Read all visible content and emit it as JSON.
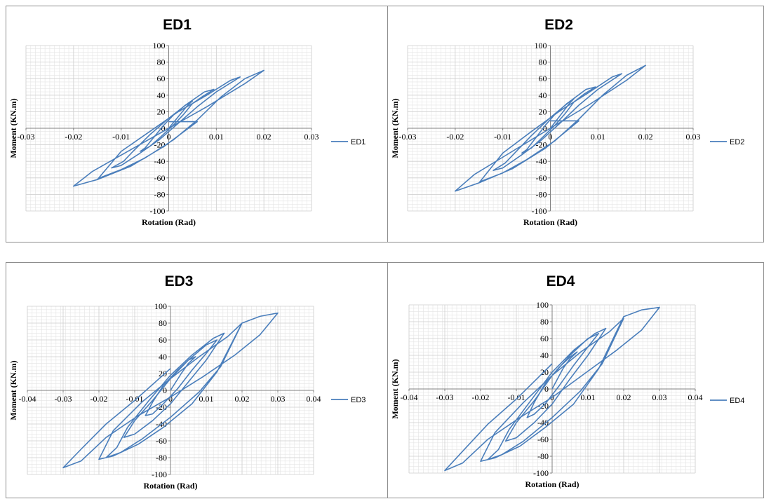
{
  "chart_data": [
    {
      "type": "line",
      "title": "ED1",
      "xlabel": "Rotation (Rad)",
      "ylabel": "Moment (KN.m)",
      "xlim": [
        -0.03,
        0.03
      ],
      "ylim": [
        -100,
        100
      ],
      "xticks": [
        -0.03,
        -0.02,
        -0.01,
        0,
        0.01,
        0.02,
        0.03
      ],
      "xtick_labels": [
        "-0.03",
        "-0.02",
        "-0.01",
        "0",
        "0.01",
        "0.02",
        "0.03"
      ],
      "yticks": [
        -100,
        -80,
        -60,
        -40,
        -20,
        0,
        20,
        40,
        60,
        80,
        100
      ],
      "ytick_labels": [
        "-100",
        "-80",
        "-60",
        "-40",
        "-20",
        "0",
        "20",
        "40",
        "60",
        "80",
        "100"
      ],
      "grid": true,
      "legend_position": "right",
      "series": [
        {
          "name": "ED1",
          "color": "#4a7ebb",
          "x": [
            0,
            0.002,
            0.004,
            0.005,
            0.0035,
            0.001,
            -0.001,
            -0.003,
            -0.005,
            -0.006,
            -0.004,
            -0.002,
            0.001,
            0.003,
            0.005,
            0.007,
            0.0095,
            0.0075,
            0.004,
            0.0,
            -0.004,
            -0.0075,
            -0.0095,
            -0.012,
            -0.01,
            -0.006,
            -0.002,
            0.002,
            0.006,
            0.01,
            0.015,
            0.013,
            0.008,
            0.002,
            -0.004,
            -0.01,
            -0.015,
            -0.0145,
            -0.01,
            -0.005,
            0.001,
            0.006,
            0.011,
            0.016,
            0.02,
            0.016,
            0.008,
            0.0,
            -0.008,
            -0.016,
            -0.02,
            -0.015,
            -0.008,
            -0.001,
            0.006,
            0.0
          ],
          "y": [
            0,
            14,
            28,
            33,
            28,
            16,
            4,
            -10,
            -24,
            -28,
            -22,
            -12,
            4,
            16,
            30,
            38,
            47,
            44,
            30,
            12,
            -8,
            -28,
            -40,
            -48,
            -45,
            -30,
            -14,
            6,
            26,
            44,
            62,
            58,
            40,
            20,
            -4,
            -28,
            -62,
            -60,
            -50,
            -36,
            -14,
            10,
            38,
            60,
            70,
            54,
            26,
            0,
            -26,
            -52,
            -70,
            -62,
            -46,
            -22,
            8,
            8
          ]
        }
      ]
    },
    {
      "type": "line",
      "title": "ED2",
      "xlabel": "Rotation (Rad)",
      "ylabel": "Moment (KN.m)",
      "xlim": [
        -0.03,
        0.03
      ],
      "ylim": [
        -100,
        100
      ],
      "xticks": [
        -0.03,
        -0.02,
        -0.01,
        0,
        0.01,
        0.02,
        0.03
      ],
      "xtick_labels": [
        "-0.03",
        "-0.02",
        "-0.01",
        "0",
        "0.01",
        "0.02",
        "0.03"
      ],
      "yticks": [
        -100,
        -80,
        -60,
        -40,
        -20,
        0,
        20,
        40,
        60,
        80,
        100
      ],
      "ytick_labels": [
        "-100",
        "-80",
        "-60",
        "-40",
        "-20",
        "0",
        "20",
        "40",
        "60",
        "80",
        "100"
      ],
      "grid": true,
      "legend_position": "right",
      "series": [
        {
          "name": "ED2",
          "color": "#4a7ebb",
          "x": [
            0,
            0.002,
            0.004,
            0.005,
            0.0035,
            0.001,
            -0.001,
            -0.003,
            -0.005,
            -0.006,
            -0.004,
            -0.002,
            0.001,
            0.003,
            0.005,
            0.007,
            0.0095,
            0.0075,
            0.004,
            0.0,
            -0.004,
            -0.0075,
            -0.0095,
            -0.012,
            -0.01,
            -0.006,
            -0.002,
            0.002,
            0.006,
            0.01,
            0.015,
            0.013,
            0.008,
            0.002,
            -0.004,
            -0.01,
            -0.015,
            -0.0145,
            -0.01,
            -0.005,
            0.001,
            0.006,
            0.011,
            0.016,
            0.02,
            0.016,
            0.008,
            0.0,
            -0.008,
            -0.016,
            -0.02,
            -0.015,
            -0.008,
            -0.001,
            0.006,
            0.0
          ],
          "y": [
            0,
            15,
            30,
            36,
            30,
            17,
            4,
            -11,
            -26,
            -30,
            -24,
            -13,
            4,
            17,
            32,
            41,
            50,
            47,
            32,
            13,
            -9,
            -30,
            -42,
            -51,
            -48,
            -32,
            -15,
            6,
            28,
            47,
            66,
            62,
            43,
            21,
            -4,
            -30,
            -66,
            -64,
            -54,
            -38,
            -15,
            11,
            40,
            64,
            76,
            58,
            28,
            0,
            -28,
            -56,
            -76,
            -66,
            -49,
            -24,
            9,
            9
          ]
        }
      ]
    },
    {
      "type": "line",
      "title": "ED3",
      "xlabel": "Rotation (Rad)",
      "ylabel": "Moment (KN.m)",
      "xlim": [
        -0.04,
        0.04
      ],
      "ylim": [
        -100,
        100
      ],
      "xticks": [
        -0.04,
        -0.03,
        -0.02,
        -0.01,
        0,
        0.01,
        0.02,
        0.03,
        0.04
      ],
      "xtick_labels": [
        "-0.04",
        "-0.03",
        "-0.02",
        "-0.01",
        "0",
        "0.01",
        "0.02",
        "0.03",
        "0.04"
      ],
      "yticks": [
        -100,
        -80,
        -60,
        -40,
        -20,
        0,
        20,
        40,
        60,
        80,
        100
      ],
      "ytick_labels": [
        "-100",
        "-80",
        "-60",
        "-40",
        "-20",
        "0",
        "20",
        "40",
        "60",
        "80",
        "100"
      ],
      "grid": true,
      "legend_position": "right",
      "series": [
        {
          "name": "ED3",
          "color": "#4a7ebb",
          "x": [
            0,
            0.003,
            0.005,
            0.007,
            0.005,
            0.002,
            -0.002,
            -0.005,
            -0.007,
            -0.005,
            -0.002,
            0.002,
            0.006,
            0.01,
            0.013,
            0.01,
            0.005,
            0.0,
            -0.005,
            -0.01,
            -0.013,
            -0.01,
            -0.005,
            0.0,
            0.005,
            0.01,
            0.015,
            0.012,
            0.006,
            0.0,
            -0.006,
            -0.012,
            -0.015,
            -0.018,
            -0.014,
            -0.008,
            0.0,
            0.008,
            0.014,
            0.02,
            0.016,
            0.008,
            0.0,
            -0.008,
            -0.016,
            -0.02,
            -0.016,
            -0.009,
            -0.002,
            0.006,
            0.013,
            0.02,
            0.025,
            0.03,
            0.025,
            0.018,
            0.009,
            0.0,
            -0.009,
            -0.018,
            -0.025,
            -0.03,
            -0.025,
            -0.018,
            -0.01,
            0.0
          ],
          "y": [
            0,
            20,
            32,
            40,
            36,
            24,
            6,
            -14,
            -30,
            -28,
            -16,
            2,
            24,
            44,
            60,
            54,
            36,
            14,
            -12,
            -36,
            -56,
            -52,
            -36,
            -16,
            10,
            36,
            68,
            62,
            42,
            18,
            -12,
            -44,
            -68,
            -80,
            -74,
            -58,
            -32,
            -2,
            28,
            80,
            64,
            40,
            14,
            -14,
            -48,
            -82,
            -78,
            -64,
            -44,
            -16,
            22,
            80,
            88,
            92,
            66,
            42,
            16,
            -8,
            -30,
            -56,
            -84,
            -92,
            -70,
            -40,
            -12,
            26
          ]
        }
      ]
    },
    {
      "type": "line",
      "title": "ED4",
      "xlabel": "Rotation (Rad)",
      "ylabel": "Moment (KN.m)",
      "xlim": [
        -0.04,
        0.04
      ],
      "ylim": [
        -100,
        100
      ],
      "xticks": [
        -0.04,
        -0.03,
        -0.02,
        -0.01,
        0,
        0.01,
        0.02,
        0.03,
        0.04
      ],
      "xtick_labels": [
        "-0.04",
        "-0.03",
        "-0.02",
        "-0.01",
        "0",
        "0.01",
        "0.02",
        "0.03",
        "0.04"
      ],
      "yticks": [
        -100,
        -80,
        -60,
        -40,
        -20,
        0,
        20,
        40,
        60,
        80,
        100
      ],
      "ytick_labels": [
        "-100",
        "-80",
        "-60",
        "-40",
        "-20",
        "0",
        "20",
        "40",
        "60",
        "80",
        "100"
      ],
      "grid": true,
      "legend_position": "right",
      "series": [
        {
          "name": "ED4",
          "color": "#4a7ebb",
          "x": [
            0,
            0.003,
            0.005,
            0.007,
            0.005,
            0.002,
            -0.002,
            -0.005,
            -0.007,
            -0.005,
            -0.002,
            0.002,
            0.006,
            0.01,
            0.013,
            0.01,
            0.005,
            0.0,
            -0.005,
            -0.01,
            -0.013,
            -0.01,
            -0.005,
            0.0,
            0.005,
            0.01,
            0.015,
            0.012,
            0.006,
            0.0,
            -0.006,
            -0.012,
            -0.015,
            -0.018,
            -0.014,
            -0.008,
            0.0,
            0.008,
            0.014,
            0.02,
            0.016,
            0.008,
            0.0,
            -0.008,
            -0.016,
            -0.02,
            -0.016,
            -0.009,
            -0.002,
            0.006,
            0.013,
            0.02,
            0.025,
            0.03,
            0.025,
            0.018,
            0.009,
            0.0,
            -0.009,
            -0.018,
            -0.025,
            -0.03,
            -0.025,
            -0.018,
            -0.01,
            0.0
          ],
          "y": [
            0,
            24,
            36,
            44,
            38,
            26,
            6,
            -16,
            -34,
            -30,
            -18,
            4,
            28,
            50,
            66,
            60,
            40,
            16,
            -14,
            -40,
            -62,
            -58,
            -40,
            -18,
            12,
            40,
            72,
            66,
            46,
            20,
            -14,
            -48,
            -72,
            -84,
            -78,
            -62,
            -34,
            -2,
            30,
            84,
            68,
            44,
            16,
            -16,
            -52,
            -86,
            -82,
            -68,
            -46,
            -18,
            24,
            86,
            94,
            97,
            70,
            46,
            18,
            -10,
            -34,
            -60,
            -88,
            -97,
            -74,
            -42,
            -12,
            30
          ]
        }
      ]
    }
  ]
}
